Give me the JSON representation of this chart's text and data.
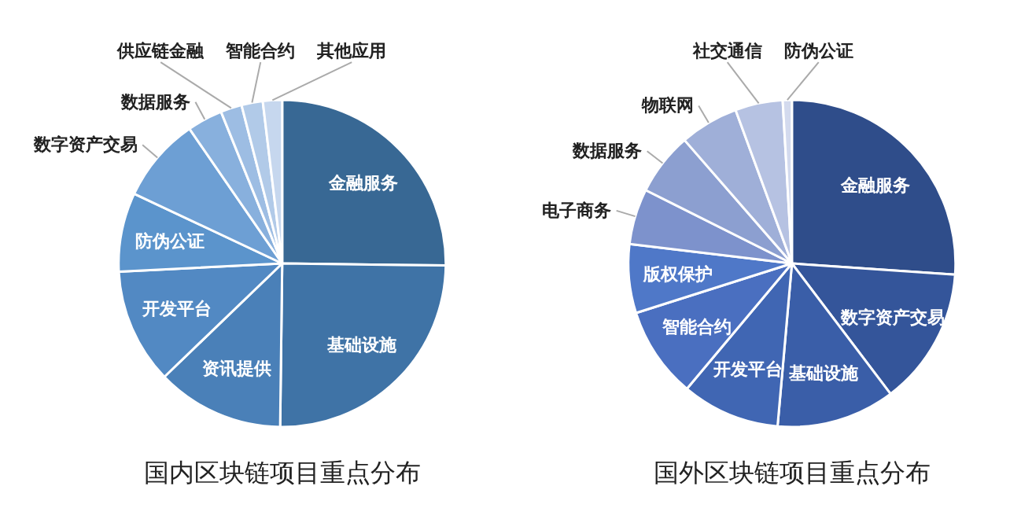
{
  "chart_data": [
    {
      "type": "pie",
      "title": "国内区块链项目重点分布",
      "categories": [
        "金融服务",
        "基础设施",
        "资讯提供",
        "开发平台",
        "防伪公证",
        "数字资产交易",
        "数据服务",
        "供应链金融",
        "智能合约",
        "其他应用"
      ],
      "values": [
        25.2,
        25.0,
        12.6,
        11.4,
        7.8,
        8.4,
        3.5,
        2.1,
        2.1,
        1.9
      ],
      "colors": [
        "#386894",
        "#3f73a6",
        "#4a80b8",
        "#5289c3",
        "#5b94cc",
        "#6d9fd4",
        "#88b0dd",
        "#9dbde3",
        "#b1cae8",
        "#c6d7ee"
      ]
    },
    {
      "type": "pie",
      "title": "国外区块链项目重点分布",
      "categories": [
        "金融服务",
        "数字资产交易",
        "基础设施",
        "开发平台",
        "智能合约",
        "版权保护",
        "电子商务",
        "数据服务",
        "物联网",
        "社交通信",
        "防伪公证"
      ],
      "values": [
        26.1,
        13.6,
        11.7,
        9.7,
        9.0,
        6.8,
        5.5,
        6.2,
        5.8,
        4.7,
        0.9
      ],
      "colors": [
        "#2f4d8a",
        "#34559a",
        "#3a5ea8",
        "#4066b3",
        "#4a6fc0",
        "#4f78c8",
        "#7d92cc",
        "#8c9fd0",
        "#9fafd8",
        "#b6c2e2",
        "#d3daee"
      ]
    }
  ]
}
